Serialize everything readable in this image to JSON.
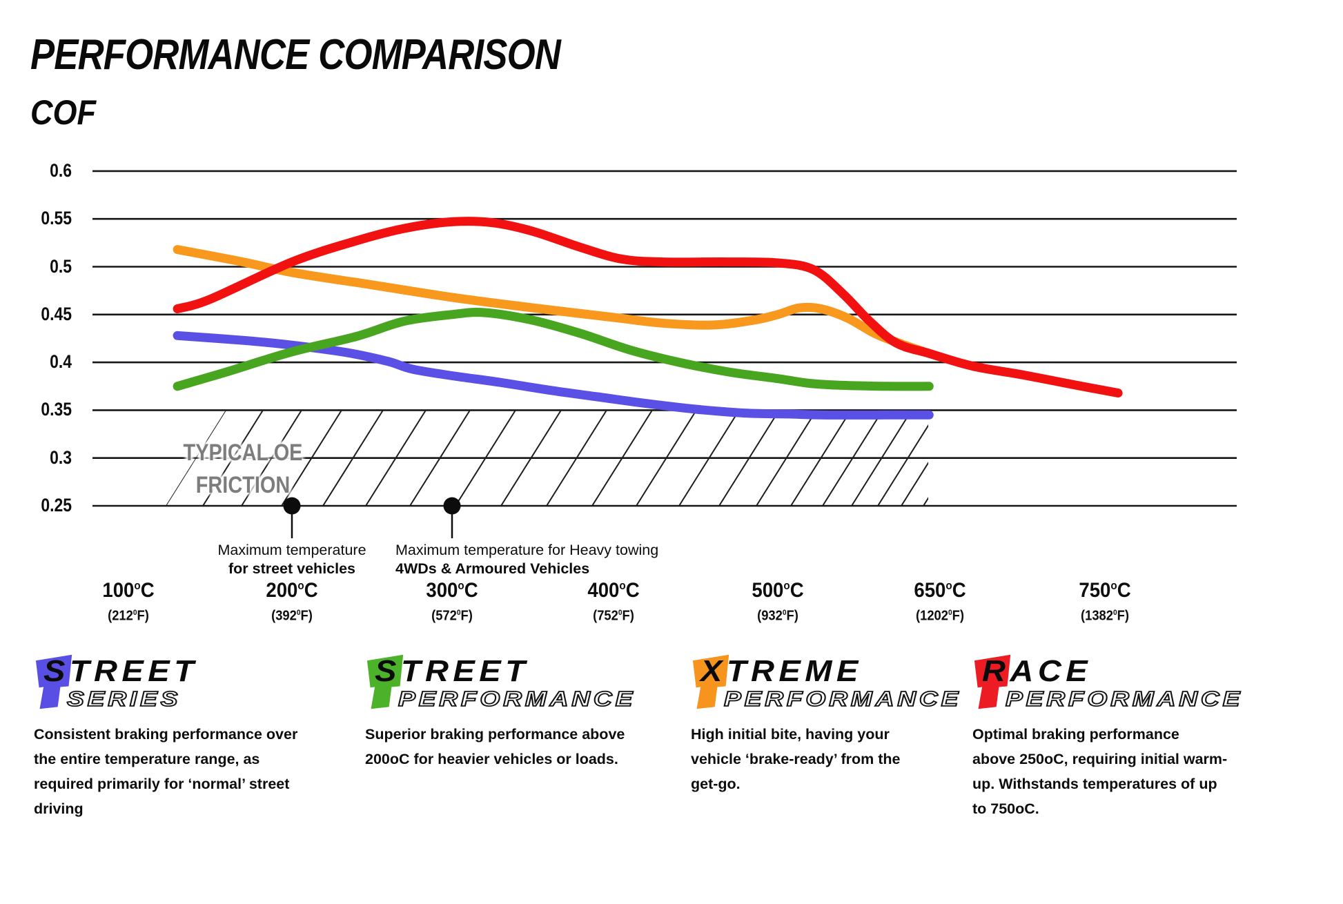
{
  "title": "PERFORMANCE COMPARISON",
  "y_axis_label": "COF",
  "chart_data": {
    "type": "line",
    "xlabel": "Temperature",
    "ylabel": "COF",
    "grid": "horizontal",
    "y_ticks": [
      "0.6",
      "0.55",
      "0.5",
      "0.45",
      "0.4",
      "0.35",
      "0.3",
      "0.25"
    ],
    "ylim": [
      0.25,
      0.6
    ],
    "x_ticks": [
      {
        "c": "100",
        "f": "212"
      },
      {
        "c": "200",
        "f": "392"
      },
      {
        "c": "300",
        "f": "572"
      },
      {
        "c": "400",
        "f": "752"
      },
      {
        "c": "500",
        "f": "932"
      },
      {
        "c": "650",
        "f": "1202"
      },
      {
        "c": "750",
        "f": "1382"
      }
    ],
    "oe_zone": {
      "line1": "TYPICAL OE",
      "line2": "FRICTION",
      "cof_range": [
        0.25,
        0.35
      ]
    },
    "markers": [
      {
        "temp": 200,
        "cof": 0.25,
        "line1": "Maximum temperature",
        "line2": "for street vehicles",
        "align": "center"
      },
      {
        "temp": 300,
        "cof": 0.25,
        "line1": "Maximum temperature for Heavy towing",
        "line2": "4WDs & Armoured Vehicles",
        "align": "left"
      }
    ],
    "series": [
      {
        "name": "Street Series",
        "color": "#5a50e5",
        "points": [
          [
            130,
            0.428
          ],
          [
            170,
            0.423
          ],
          [
            200,
            0.418
          ],
          [
            235,
            0.41
          ],
          [
            260,
            0.401
          ],
          [
            275,
            0.393
          ],
          [
            300,
            0.386
          ],
          [
            330,
            0.379
          ],
          [
            360,
            0.371
          ],
          [
            390,
            0.364
          ],
          [
            420,
            0.357
          ],
          [
            450,
            0.351
          ],
          [
            480,
            0.347
          ],
          [
            510,
            0.346
          ],
          [
            540,
            0.345
          ],
          [
            600,
            0.345
          ],
          [
            640,
            0.345
          ]
        ]
      },
      {
        "name": "Street Performance",
        "color": "#47a51f",
        "points": [
          [
            130,
            0.375
          ],
          [
            160,
            0.39
          ],
          [
            200,
            0.411
          ],
          [
            240,
            0.427
          ],
          [
            270,
            0.443
          ],
          [
            300,
            0.45
          ],
          [
            320,
            0.452
          ],
          [
            350,
            0.444
          ],
          [
            380,
            0.43
          ],
          [
            410,
            0.413
          ],
          [
            440,
            0.4
          ],
          [
            470,
            0.39
          ],
          [
            500,
            0.383
          ],
          [
            530,
            0.378
          ],
          [
            560,
            0.376
          ],
          [
            600,
            0.375
          ],
          [
            640,
            0.375
          ]
        ]
      },
      {
        "name": "Xtreme Performance",
        "color": "#f8981d",
        "points": [
          [
            130,
            0.518
          ],
          [
            170,
            0.505
          ],
          [
            200,
            0.494
          ],
          [
            250,
            0.481
          ],
          [
            300,
            0.468
          ],
          [
            350,
            0.457
          ],
          [
            400,
            0.447
          ],
          [
            430,
            0.441
          ],
          [
            460,
            0.439
          ],
          [
            485,
            0.444
          ],
          [
            500,
            0.45
          ],
          [
            520,
            0.457
          ],
          [
            540,
            0.456
          ],
          [
            565,
            0.446
          ],
          [
            590,
            0.43
          ],
          [
            615,
            0.419
          ],
          [
            641,
            0.409
          ]
        ]
      },
      {
        "name": "Race Performance",
        "color": "#f21111",
        "points": [
          [
            130,
            0.456
          ],
          [
            150,
            0.466
          ],
          [
            200,
            0.505
          ],
          [
            240,
            0.527
          ],
          [
            270,
            0.54
          ],
          [
            300,
            0.547
          ],
          [
            325,
            0.546
          ],
          [
            350,
            0.537
          ],
          [
            380,
            0.52
          ],
          [
            405,
            0.508
          ],
          [
            430,
            0.505
          ],
          [
            470,
            0.505
          ],
          [
            500,
            0.504
          ],
          [
            533,
            0.497
          ],
          [
            560,
            0.472
          ],
          [
            585,
            0.443
          ],
          [
            610,
            0.42
          ],
          [
            641,
            0.409
          ],
          [
            670,
            0.396
          ],
          [
            700,
            0.387
          ],
          [
            730,
            0.377
          ],
          [
            758,
            0.368
          ]
        ]
      }
    ]
  },
  "legend": [
    {
      "word1": "STREET",
      "word2": "SERIES",
      "color": "#5a4fe4",
      "description": "Consistent braking performance over\nthe entire temperature range, as\nrequired primarily for ‘normal’ street\ndriving"
    },
    {
      "word1": "STREET",
      "word2": "PERFORMANCE",
      "color": "#4cb22a",
      "description": "Superior braking performance above\n200oC for heavier vehicles or loads."
    },
    {
      "word1": "XTREME",
      "word2": "PERFORMANCE",
      "color": "#f7941e",
      "description": "High initial bite, having your\nvehicle ‘brake-ready’ from the\nget-go."
    },
    {
      "word1": "RACE",
      "word2": "PERFORMANCE",
      "color": "#ed1c24",
      "description": "Optimal braking performance\nabove 250oC, requiring initial warm-\nup. Withstands temperatures of up\nto 750oC."
    }
  ]
}
